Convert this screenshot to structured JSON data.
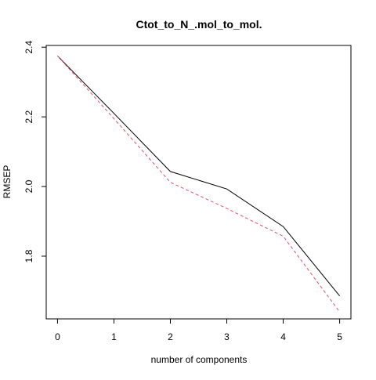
{
  "chart_data": {
    "type": "line",
    "title": "Ctot_to_N_.mol_to_mol.",
    "xlabel": "number of components",
    "ylabel": "RMSEP",
    "x": [
      0,
      1,
      2,
      3,
      4,
      5
    ],
    "xlim": [
      -0.2,
      5.2
    ],
    "ylim": [
      1.62,
      2.405
    ],
    "xticks": [
      "0",
      "1",
      "2",
      "3",
      "4",
      "5"
    ],
    "yticks": [
      "1.8",
      "2.0",
      "2.2",
      "2.4"
    ],
    "grid": false,
    "legend": "none",
    "series": [
      {
        "values": [
          2.375,
          2.21,
          2.043,
          1.993,
          1.885,
          1.686
        ],
        "color": "#000000",
        "dash": "solid"
      },
      {
        "values": [
          2.375,
          2.195,
          2.012,
          1.937,
          1.857,
          1.64
        ],
        "color": "#df536b",
        "dash": "dashed"
      }
    ]
  }
}
